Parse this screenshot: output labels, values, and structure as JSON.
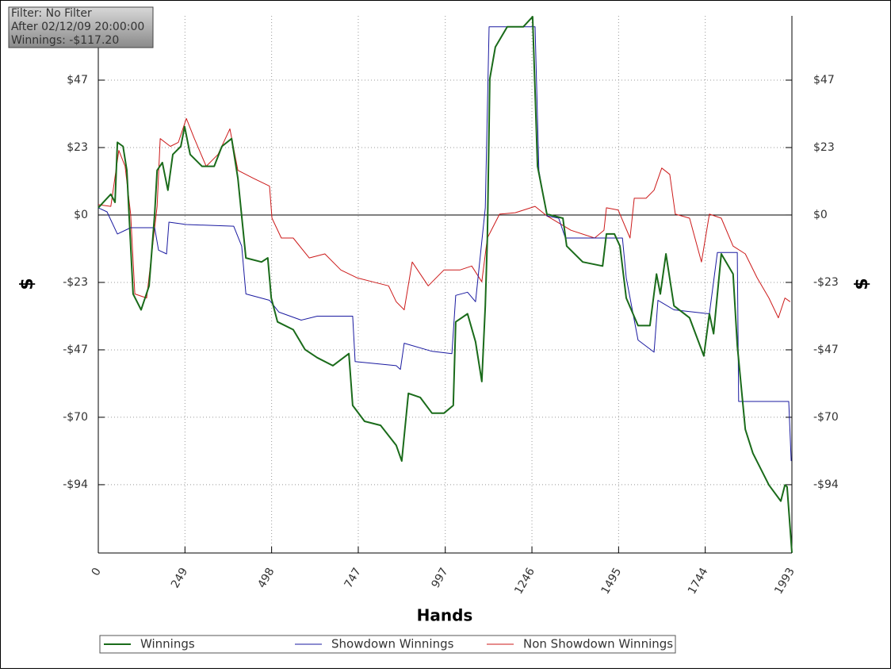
{
  "chart_data": {
    "type": "line",
    "info": [
      "Filter: No Filter",
      "After 02/12/09 20:00:00",
      "Winnings: -$117.20"
    ],
    "x_label": "Hands",
    "y_label": "$",
    "xlim": [
      0,
      1993
    ],
    "xticks": [
      0,
      249,
      498,
      747,
      997,
      1246,
      1495,
      1744,
      1993
    ],
    "ylim": [
      -117.3,
      69.1
    ],
    "yticks": [
      {
        "value": 46.8,
        "label": "$47"
      },
      {
        "value": 23.4,
        "label": "$23"
      },
      {
        "value": 0,
        "label": "$0"
      },
      {
        "value": -23.4,
        "label": "-$23"
      },
      {
        "value": -46.8,
        "label": "-$47"
      },
      {
        "value": -70.2,
        "label": "-$70"
      },
      {
        "value": -93.6,
        "label": "-$94"
      }
    ],
    "grid": true,
    "series": [
      {
        "name": "Winnings",
        "color": "#1a6b1a",
        "x": [
          0,
          25,
          36,
          48,
          55,
          71,
          82,
          100,
          123,
          146,
          162,
          169,
          184,
          200,
          214,
          237,
          248,
          264,
          298,
          333,
          355,
          383,
          401,
          424,
          469,
          487,
          497,
          515,
          560,
          594,
          629,
          674,
          720,
          731,
          765,
          811,
          856,
          872,
          891,
          925,
          959,
          993,
          1020,
          1027,
          1061,
          1084,
          1102,
          1112,
          1118,
          1125,
          1141,
          1175,
          1221,
          1248,
          1262,
          1289,
          1335,
          1346,
          1392,
          1449,
          1460,
          1483,
          1499,
          1517,
          1551,
          1585,
          1604,
          1615,
          1631,
          1654,
          1699,
          1740,
          1756,
          1768,
          1790,
          1824,
          1836,
          1859,
          1881,
          1927,
          1961,
          1973,
          1979,
          1993
        ],
        "values": [
          2.5,
          5.8,
          7.2,
          4.4,
          25.2,
          23.8,
          15.5,
          -27.4,
          -32.9,
          -24.6,
          0.3,
          15.5,
          18.2,
          8.6,
          21.0,
          23.8,
          30.7,
          21.0,
          16.9,
          16.9,
          23.8,
          26.5,
          12.7,
          -14.9,
          -16.3,
          -14.9,
          -28.8,
          -37.1,
          -39.8,
          -46.7,
          -49.5,
          -52.3,
          -48.1,
          -66.1,
          -71.6,
          -73.0,
          -79.9,
          -85.4,
          -61.9,
          -63.3,
          -68.8,
          -68.8,
          -66.1,
          -37.1,
          -34.3,
          -44.0,
          -57.8,
          -31.5,
          -8.0,
          47.3,
          58.3,
          65.3,
          65.3,
          68.8,
          16.9,
          0.3,
          -1.1,
          -10.8,
          -16.3,
          -17.7,
          -6.6,
          -6.6,
          -10.8,
          -28.8,
          -38.4,
          -38.4,
          -20.5,
          -27.4,
          -13.5,
          -31.5,
          -35.7,
          -48.9,
          -34.3,
          -41.2,
          -13.5,
          -20.5,
          -45.3,
          -74.4,
          -82.7,
          -93.7,
          -99.3,
          -93.7,
          -94.3,
          -117.2
        ]
      },
      {
        "name": "Showdown Winnings",
        "color": "#1a1aa0",
        "x": [
          0,
          25,
          55,
          93,
          162,
          173,
          196,
          203,
          253,
          389,
          412,
          424,
          492,
          519,
          583,
          629,
          731,
          738,
          856,
          868,
          879,
          959,
          1016,
          1027,
          1061,
          1084,
          1112,
          1123,
          1255,
          1266,
          1289,
          1323,
          1342,
          1506,
          1517,
          1551,
          1597,
          1608,
          1654,
          1756,
          1779,
          1836,
          1840,
          1984,
          1991
        ],
        "values": [
          2.5,
          1.1,
          -6.6,
          -4.4,
          -4.4,
          -12.2,
          -13.5,
          -2.5,
          -3.3,
          -3.9,
          -10.8,
          -27.4,
          -29.6,
          -33.7,
          -36.5,
          -35.1,
          -35.1,
          -50.9,
          -52.3,
          -53.6,
          -44.5,
          -47.3,
          -48.1,
          -27.9,
          -26.8,
          -30.1,
          2.5,
          65.3,
          65.3,
          15.5,
          -0.3,
          -1.1,
          -8.0,
          -8.0,
          -21.8,
          -43.4,
          -47.6,
          -29.6,
          -32.9,
          -34.3,
          -13.0,
          -13.0,
          -64.7,
          -64.7,
          -85.4
        ]
      },
      {
        "name": "Non Showdown Winnings",
        "color": "#cc1a1a",
        "x": [
          0,
          36,
          59,
          77,
          93,
          105,
          139,
          169,
          178,
          207,
          230,
          253,
          276,
          310,
          344,
          378,
          401,
          446,
          492,
          499,
          526,
          560,
          606,
          651,
          697,
          743,
          788,
          834,
          856,
          879,
          902,
          948,
          993,
          1039,
          1073,
          1102,
          1118,
          1153,
          1198,
          1255,
          1289,
          1358,
          1426,
          1453,
          1460,
          1494,
          1528,
          1540,
          1574,
          1597,
          1619,
          1642,
          1658,
          1699,
          1733,
          1756,
          1790,
          1824,
          1859,
          1893,
          1927,
          1954,
          1973,
          1988
        ],
        "values": [
          3.6,
          3.0,
          22.4,
          16.9,
          0.3,
          -27.4,
          -28.8,
          3.0,
          26.5,
          23.8,
          25.2,
          33.5,
          26.5,
          16.9,
          21.0,
          29.9,
          15.5,
          12.7,
          10.0,
          -1.1,
          -8.0,
          -8.0,
          -14.9,
          -13.5,
          -19.1,
          -21.8,
          -23.2,
          -24.6,
          -30.1,
          -32.9,
          -16.3,
          -24.6,
          -19.1,
          -19.1,
          -17.7,
          -23.2,
          -8.0,
          0.3,
          0.8,
          3.0,
          -0.3,
          -5.3,
          -8.0,
          -5.3,
          2.5,
          1.7,
          -8.0,
          5.8,
          5.8,
          8.6,
          16.3,
          14.1,
          0.3,
          -1.1,
          -16.3,
          0.3,
          -1.1,
          -10.8,
          -13.5,
          -21.8,
          -28.8,
          -35.7,
          -28.8,
          -30.1
        ]
      }
    ]
  }
}
